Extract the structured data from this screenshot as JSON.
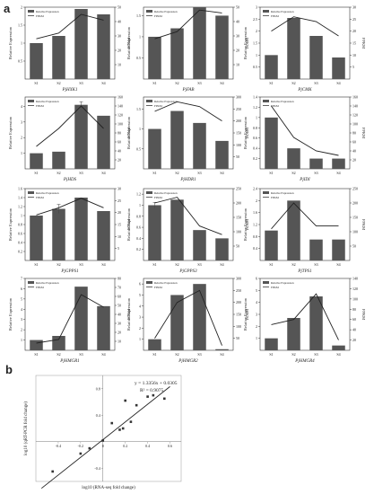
{
  "panel_labels": {
    "a": "a",
    "b": "b"
  },
  "legend": {
    "bar": "Relative Expression",
    "line": "FPKM"
  },
  "colors": {
    "bar": "#555555",
    "line": "#222222",
    "axis": "#333333",
    "fit": "#222222",
    "point": "#333333"
  },
  "chart_data": [
    {
      "type": "bar",
      "gene": "PjHXK1",
      "categories": [
        "S1",
        "S2",
        "S3",
        "S4"
      ],
      "values": [
        1.0,
        1.2,
        1.95,
        1.8
      ],
      "line": [
        28,
        32,
        45,
        41
      ],
      "ylabel": "Relative Expression",
      "y2label": "FPKM",
      "ylim": [
        0,
        2
      ],
      "y2lim": [
        0,
        50
      ],
      "yticks": [
        0.5,
        1.0,
        1.5,
        2.0
      ],
      "y2ticks": [
        10,
        20,
        30,
        40,
        50
      ]
    },
    {
      "type": "bar",
      "gene": "PjFAB",
      "categories": [
        "S1",
        "S2",
        "S3",
        "S4"
      ],
      "values": [
        1.0,
        1.2,
        1.7,
        1.5
      ],
      "line": [
        28,
        33,
        48,
        46
      ],
      "ylabel": "Relative Expression",
      "y2label": "FPKM",
      "ylim": [
        0,
        1.7
      ],
      "y2lim": [
        0,
        50
      ],
      "yticks": [
        0.5,
        1.0,
        1.5
      ],
      "y2ticks": [
        10,
        20,
        30,
        40,
        50
      ]
    },
    {
      "type": "bar",
      "gene": "PjCMK",
      "categories": [
        "S1",
        "S2",
        "S3",
        "S4"
      ],
      "values": [
        1.0,
        2.55,
        1.8,
        0.9
      ],
      "line": [
        20,
        26,
        24,
        18
      ],
      "ylabel": "Relative Expression",
      "y2label": "FPKM",
      "ylim": [
        0,
        3
      ],
      "y2lim": [
        0,
        30
      ],
      "yticks": [
        0.5,
        1.0,
        1.5,
        2.0,
        2.5,
        3.0
      ],
      "y2ticks": [
        5,
        10,
        15,
        20,
        25,
        30
      ]
    },
    {
      "type": "bar",
      "gene": "PjHDS",
      "categories": [
        "S1",
        "S2",
        "S3",
        "S4"
      ],
      "values": [
        1.0,
        1.1,
        4.1,
        3.4
      ],
      "line": [
        50,
        90,
        140,
        90
      ],
      "ylabel": "Relative Expression",
      "y2label": "FPKM",
      "ylim": [
        0,
        4.6
      ],
      "y2lim": [
        0,
        160
      ],
      "yticks": [
        1,
        2,
        3,
        4
      ],
      "y2ticks": [
        20,
        40,
        60,
        80,
        100,
        120,
        140,
        160
      ],
      "errors": [
        0,
        0,
        0.2,
        0
      ]
    },
    {
      "type": "bar",
      "gene": "PjHDR1",
      "categories": [
        "S1",
        "S2",
        "S3",
        "S4"
      ],
      "values": [
        1.0,
        1.45,
        1.15,
        0.7
      ],
      "line": [
        240,
        280,
        260,
        200
      ],
      "ylabel": "Relative Expression",
      "y2label": "FPKM",
      "ylim": [
        0,
        1.8
      ],
      "y2lim": [
        0,
        300
      ],
      "yticks": [
        0.5,
        1.0,
        1.5
      ],
      "y2ticks": [
        50,
        100,
        150,
        200,
        250,
        300
      ]
    },
    {
      "type": "bar",
      "gene": "PjIDI",
      "categories": [
        "S1",
        "S2",
        "S3",
        "S4"
      ],
      "values": [
        1.0,
        0.4,
        0.2,
        0.2
      ],
      "line": [
        140,
        70,
        40,
        30
      ],
      "ylabel": "Relative Expression",
      "y2label": "FPKM",
      "ylim": [
        0,
        1.4
      ],
      "y2lim": [
        0,
        160
      ],
      "yticks": [
        0.2,
        0.4,
        0.6,
        0.8,
        1.0,
        1.2,
        1.4
      ],
      "y2ticks": [
        20,
        40,
        60,
        80,
        100,
        120,
        140,
        160
      ]
    },
    {
      "type": "bar",
      "gene": "PjGPPS1",
      "categories": [
        "S1",
        "S2",
        "S3",
        "S4"
      ],
      "values": [
        1.0,
        1.15,
        1.4,
        1.1
      ],
      "line": [
        19,
        22,
        26,
        22
      ],
      "ylabel": "Relative Expression",
      "y2label": "FPKM",
      "ylim": [
        0,
        1.6
      ],
      "y2lim": [
        0,
        30
      ],
      "yticks": [
        0.2,
        0.4,
        0.6,
        0.8,
        1.0,
        1.2,
        1.4,
        1.6
      ],
      "y2ticks": [
        5,
        10,
        15,
        20,
        25,
        30
      ],
      "errors": [
        0,
        0.1,
        0,
        0
      ]
    },
    {
      "type": "bar",
      "gene": "PjGPPS3",
      "categories": [
        "S1",
        "S2",
        "S3",
        "S4"
      ],
      "values": [
        1.0,
        1.1,
        0.55,
        0.4
      ],
      "line": [
        200,
        220,
        120,
        90
      ],
      "ylabel": "Relative Expression",
      "y2label": "FPKM",
      "ylim": [
        0,
        1.3
      ],
      "y2lim": [
        0,
        250
      ],
      "yticks": [
        0.2,
        0.4,
        0.6,
        0.8,
        1.0,
        1.2
      ],
      "y2ticks": [
        50,
        100,
        150,
        200,
        250
      ],
      "errors": [
        0.05,
        0,
        0,
        0
      ]
    },
    {
      "type": "bar",
      "gene": "PjTPS1",
      "categories": [
        "S1",
        "S2",
        "S3",
        "S4"
      ],
      "values": [
        1.0,
        2.0,
        0.7,
        0.7
      ],
      "line": [
        110,
        200,
        120,
        120
      ],
      "ylabel": "Relative Expression",
      "y2label": "FPKM",
      "ylim": [
        0,
        2.4
      ],
      "y2lim": [
        0,
        250
      ],
      "yticks": [
        0.4,
        0.8,
        1.2,
        1.6,
        2.0,
        2.4
      ],
      "y2ticks": [
        50,
        100,
        150,
        200,
        250
      ]
    },
    {
      "type": "bar",
      "gene": "PjHMGR1",
      "categories": [
        "S1",
        "S2",
        "S3",
        "S4"
      ],
      "values": [
        1.0,
        1.4,
        6.2,
        4.3
      ],
      "line": [
        8,
        12,
        62,
        48
      ],
      "ylabel": "Relative Expression",
      "y2label": "FPKM",
      "ylim": [
        0,
        7
      ],
      "y2lim": [
        0,
        80
      ],
      "yticks": [
        1,
        2,
        3,
        4,
        5,
        6,
        7
      ],
      "y2ticks": [
        10,
        20,
        30,
        40,
        50,
        60,
        70,
        80
      ]
    },
    {
      "type": "bar",
      "gene": "PjHMGR2",
      "categories": [
        "S1",
        "S2",
        "S3",
        "S4"
      ],
      "values": [
        1.0,
        5.0,
        6.0,
        0.1
      ],
      "line": [
        50,
        200,
        250,
        20
      ],
      "ylabel": "Relative Expression",
      "y2label": "FPKM",
      "ylim": [
        0,
        6.5
      ],
      "y2lim": [
        0,
        300
      ],
      "yticks": [
        1,
        2,
        3,
        4,
        5,
        6
      ],
      "y2ticks": [
        50,
        100,
        150,
        200,
        250,
        300
      ]
    },
    {
      "type": "bar",
      "gene": "PjHMGR4",
      "categories": [
        "S1",
        "S2",
        "S3",
        "S4"
      ],
      "values": [
        1.0,
        2.7,
        4.5,
        0.4
      ],
      "line": [
        50,
        60,
        110,
        20
      ],
      "ylabel": "Relative Expression",
      "y2label": "FPKM",
      "ylim": [
        0,
        6
      ],
      "y2lim": [
        0,
        140
      ],
      "yticks": [
        1,
        2,
        3,
        4,
        5,
        6
      ],
      "y2ticks": [
        20,
        40,
        60,
        80,
        100,
        120,
        140
      ]
    },
    {
      "type": "scatter",
      "xlabel": "log10 (RNA-seq fold change)",
      "ylabel": "log10 (qRT-PCR fold change)",
      "xlim": [
        -0.6,
        0.7
      ],
      "ylim": [
        -0.6,
        1.0
      ],
      "xticks": [
        -0.4,
        -0.2,
        0,
        0.2,
        0.4,
        0.6
      ],
      "yticks": [
        -0.4,
        0,
        0.4,
        0.8
      ],
      "x": [
        -0.45,
        -0.2,
        -0.12,
        0.0,
        0.08,
        0.15,
        0.18,
        0.2,
        0.25,
        0.3,
        0.4,
        0.45,
        0.55
      ],
      "y": [
        -0.45,
        -0.18,
        -0.1,
        0.02,
        0.28,
        0.18,
        0.2,
        0.62,
        0.3,
        0.55,
        0.68,
        0.7,
        0.65
      ],
      "fit": {
        "slope": 1.3356,
        "intercept": 0.0305
      },
      "equation": "y = 1.3356x + 0.0305",
      "r2": "R² = 0.9075"
    }
  ]
}
